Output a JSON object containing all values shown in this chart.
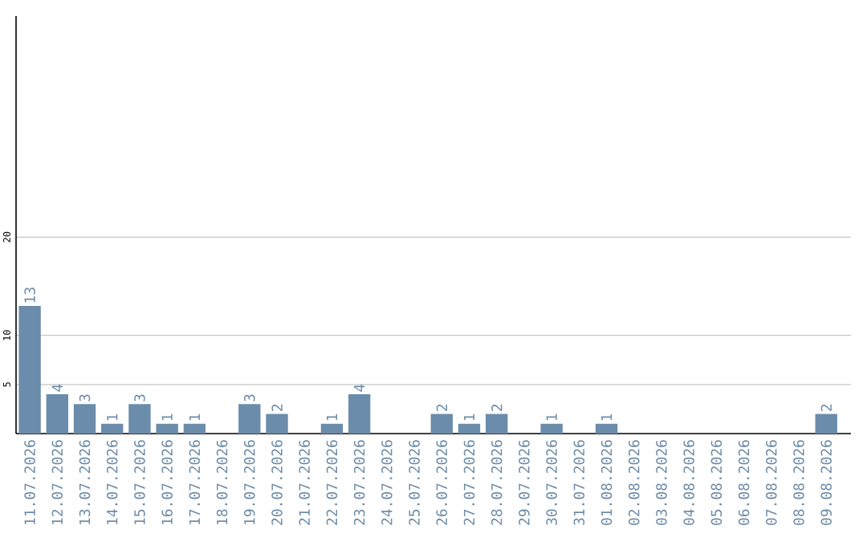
{
  "chart_data": {
    "type": "bar",
    "categories": [
      "11.07.2026",
      "12.07.2026",
      "13.07.2026",
      "14.07.2026",
      "15.07.2026",
      "16.07.2026",
      "17.07.2026",
      "18.07.2026",
      "19.07.2026",
      "20.07.2026",
      "21.07.2026",
      "22.07.2026",
      "23.07.2026",
      "24.07.2026",
      "25.07.2026",
      "26.07.2026",
      "27.07.2026",
      "28.07.2026",
      "29.07.2026",
      "30.07.2026",
      "31.07.2026",
      "01.08.2026",
      "02.08.2026",
      "03.08.2026",
      "04.08.2026",
      "05.08.2026",
      "06.08.2026",
      "07.08.2026",
      "08.08.2026",
      "09.08.2026"
    ],
    "values": [
      13,
      4,
      3,
      1,
      3,
      1,
      1,
      0,
      3,
      2,
      0,
      1,
      4,
      0,
      0,
      2,
      1,
      2,
      0,
      1,
      0,
      1,
      0,
      0,
      0,
      0,
      0,
      0,
      0,
      2
    ],
    "value_labels": [
      "13",
      "4",
      "3",
      "1",
      "3",
      "1",
      "1",
      null,
      "3",
      "2",
      null,
      "1",
      "4",
      null,
      null,
      "2",
      "1",
      "2",
      null,
      "1",
      null,
      "1",
      null,
      null,
      null,
      null,
      null,
      null,
      null,
      "2"
    ],
    "color": "#6b8cab",
    "ylim": [
      0,
      42.5
    ],
    "yticks": [
      5,
      10,
      20
    ],
    "grid": "y"
  }
}
